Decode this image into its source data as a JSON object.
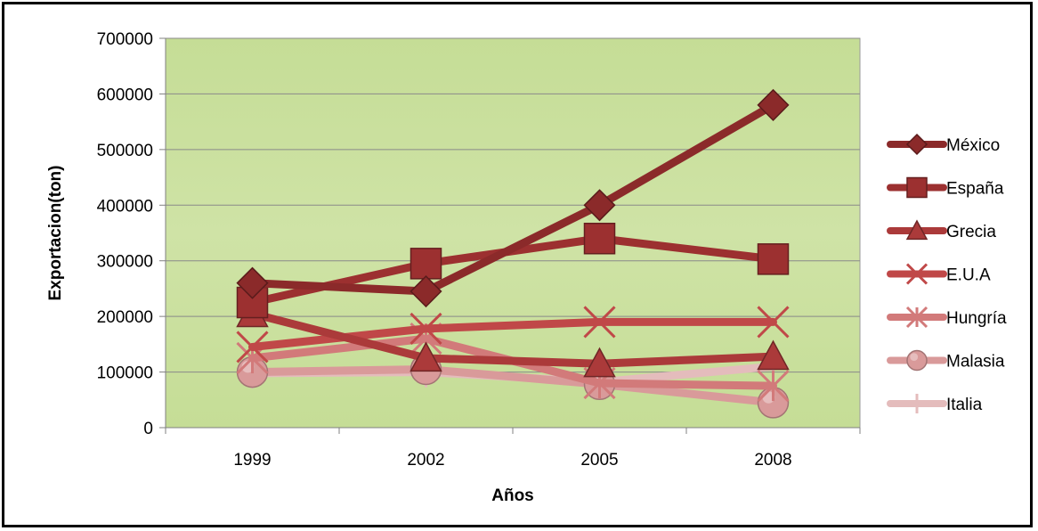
{
  "chart_data": {
    "type": "line",
    "title": "",
    "xlabel": "Años",
    "ylabel": "Exportacion(ton)",
    "categories": [
      "1999",
      "2002",
      "2005",
      "2008"
    ],
    "ylim": [
      0,
      700000
    ],
    "yticks": [
      "0",
      "100000",
      "200000",
      "300000",
      "400000",
      "500000",
      "600000",
      "700000"
    ],
    "grid": true,
    "legend_position": "right",
    "plot_background": "#cfe3a6",
    "series": [
      {
        "name": "México",
        "values": [
          260000,
          245000,
          400000,
          580000
        ],
        "color": "#8b2a2a",
        "marker": "diamond"
      },
      {
        "name": "España",
        "values": [
          225000,
          295000,
          340000,
          303000
        ],
        "color": "#9c3030",
        "marker": "square"
      },
      {
        "name": "Grecia",
        "values": [
          205000,
          125000,
          115000,
          128000
        ],
        "color": "#ab3a3a",
        "marker": "triangle"
      },
      {
        "name": "E.U.A",
        "values": [
          145000,
          178000,
          190000,
          190000
        ],
        "color": "#c04848",
        "marker": "x"
      },
      {
        "name": "Hungría",
        "values": [
          125000,
          160000,
          80000,
          75000
        ],
        "color": "#d27a7a",
        "marker": "asterisk"
      },
      {
        "name": "Malasia",
        "values": [
          100000,
          105000,
          78000,
          45000
        ],
        "color": "#d99a9a",
        "marker": "circle"
      },
      {
        "name": "Italia",
        "values": [
          98000,
          100000,
          82000,
          110000
        ],
        "color": "#e4bcbc",
        "marker": "plus"
      }
    ]
  }
}
